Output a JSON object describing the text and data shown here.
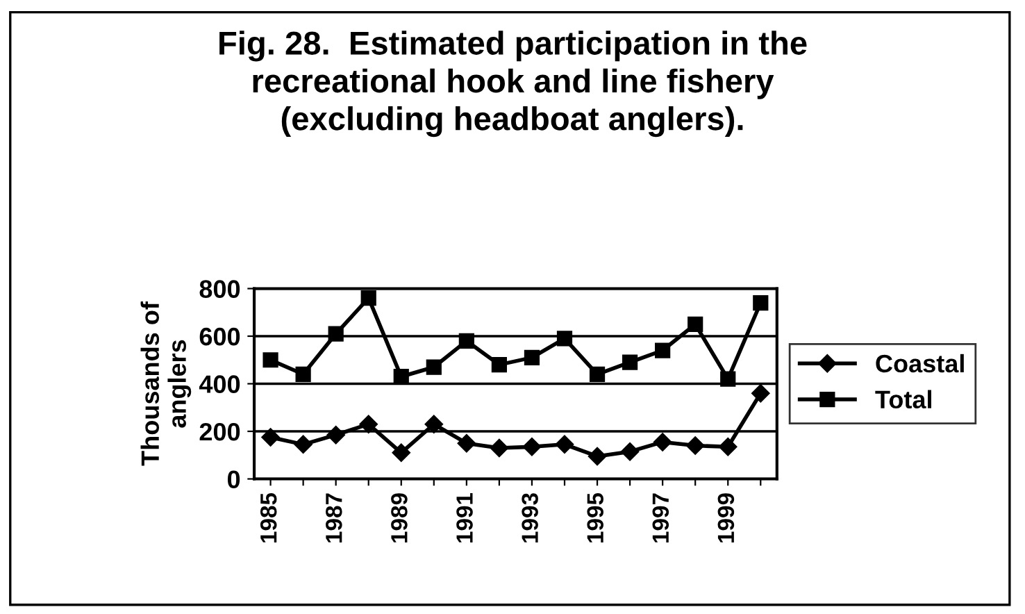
{
  "chart_data": {
    "type": "line",
    "title": "Fig. 28.  Estimated participation in the\nrecreational hook and line fishery\n(excluding headboat anglers).",
    "ylabel": "Thousands of\nanglers",
    "categories": [
      "1985",
      null,
      "1987",
      null,
      "1989",
      null,
      "1991",
      null,
      "1993",
      null,
      "1995",
      null,
      "1997",
      null,
      "1999",
      null
    ],
    "series": [
      {
        "name": "Coastal",
        "color": "#000000",
        "marker": "diamond",
        "values": [
          175,
          145,
          185,
          230,
          110,
          230,
          150,
          130,
          135,
          145,
          95,
          115,
          155,
          140,
          135,
          360
        ]
      },
      {
        "name": "Total",
        "color": "#000000",
        "marker": "square",
        "values": [
          500,
          440,
          610,
          760,
          430,
          470,
          580,
          480,
          510,
          590,
          440,
          490,
          540,
          650,
          420,
          740
        ]
      }
    ],
    "ylim": [
      0,
      800
    ],
    "yticks": [
      0,
      200,
      400,
      600,
      800
    ],
    "grid": "y",
    "legend": "right",
    "line_style": "solid"
  }
}
